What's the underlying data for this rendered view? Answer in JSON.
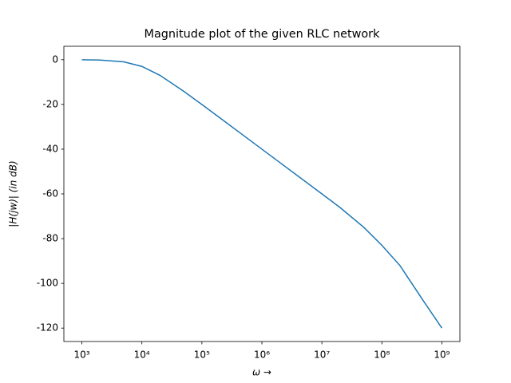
{
  "chart_data": {
    "type": "line",
    "title": "Magnitude plot of the given RLC network",
    "xlabel": "ω →",
    "ylabel": "|H(jw)| (in dB)",
    "xscale": "log",
    "x": [
      1000,
      2000,
      5000,
      10000,
      20000,
      50000,
      100000,
      200000,
      500000,
      1000000,
      2000000,
      5000000,
      10000000,
      20000000,
      50000000,
      100000000,
      200000000,
      500000000,
      1000000000
    ],
    "series": [
      {
        "name": "|H(jw)|",
        "color": "#1f77b4",
        "values": [
          -0.04,
          -0.17,
          -0.97,
          -3.01,
          -6.99,
          -14.15,
          -20.04,
          -26.03,
          -33.98,
          -40.0,
          -46.02,
          -53.98,
          -60.0,
          -66.06,
          -74.95,
          -83.01,
          -92.04,
          -108.13,
          -120.0
        ]
      }
    ],
    "xlim": [
      501,
      1995000000
    ],
    "ylim": [
      -126,
      6
    ],
    "xticks": [
      {
        "value": 1000,
        "label": "10³"
      },
      {
        "value": 10000,
        "label": "10⁴"
      },
      {
        "value": 100000,
        "label": "10⁵"
      },
      {
        "value": 1000000,
        "label": "10⁶"
      },
      {
        "value": 10000000,
        "label": "10⁷"
      },
      {
        "value": 100000000,
        "label": "10⁸"
      },
      {
        "value": 1000000000,
        "label": "10⁹"
      }
    ],
    "yticks": [
      0,
      -20,
      -40,
      -60,
      -80,
      -100,
      -120
    ],
    "grid": false
  }
}
